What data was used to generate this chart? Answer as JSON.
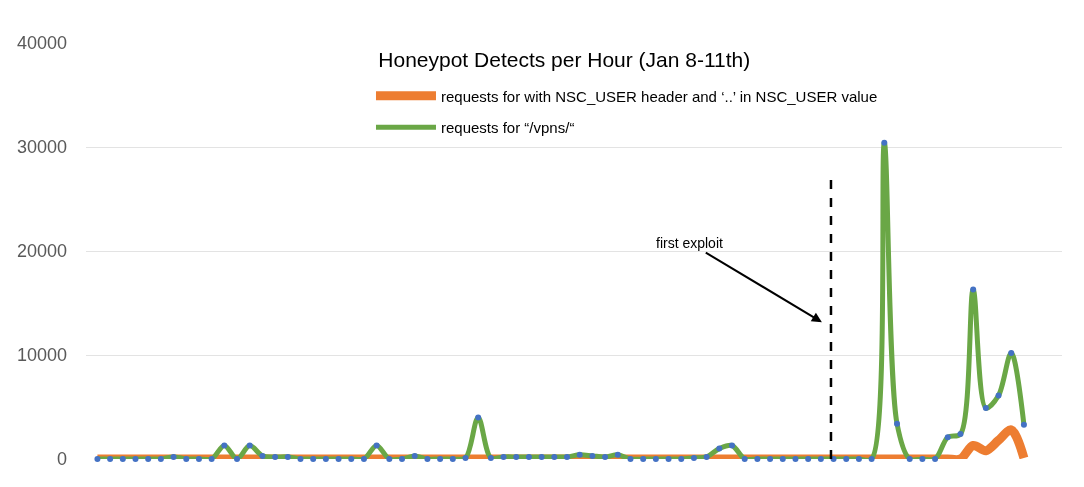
{
  "chart_data": {
    "type": "line",
    "title": "Honeypot Detects per Hour (Jan 8-11th)",
    "categories": [
      null,
      null,
      null,
      null,
      null,
      null,
      null,
      null,
      null,
      null,
      null,
      null,
      null,
      null,
      null,
      null,
      null,
      null,
      null,
      null,
      null,
      null,
      null,
      null,
      null,
      null,
      null,
      null,
      null,
      null,
      null,
      null,
      null,
      null,
      null,
      null,
      null,
      null,
      null,
      null,
      null,
      null,
      null,
      null,
      null,
      null,
      null,
      null,
      null,
      null,
      null,
      null,
      null,
      null,
      null,
      null,
      null,
      null,
      null,
      null,
      null,
      null,
      null,
      null,
      null,
      null,
      null,
      null,
      null,
      null,
      null,
      null,
      null,
      null
    ],
    "series": [
      {
        "name": "requests for with NSC_USER header and ‘..’ in NSC_USER value",
        "color": "#ed7d31",
        "values": [
          0,
          0,
          0,
          0,
          0,
          0,
          0,
          0,
          0,
          0,
          0,
          0,
          0,
          0,
          0,
          0,
          0,
          0,
          0,
          0,
          0,
          0,
          0,
          0,
          0,
          0,
          0,
          0,
          0,
          0,
          0,
          0,
          0,
          0,
          0,
          0,
          0,
          0,
          0,
          0,
          0,
          0,
          0,
          0,
          0,
          0,
          0,
          0,
          0,
          0,
          0,
          0,
          0,
          0,
          0,
          0,
          0,
          0,
          0,
          0,
          0,
          0,
          0,
          0,
          0,
          0,
          0,
          0,
          0,
          1300,
          800,
          1800,
          2800,
          100
        ]
      },
      {
        "name": "requests for “/vpns/“",
        "color": "#6aa746",
        "values": [
          0,
          0,
          0,
          0,
          0,
          0,
          200,
          0,
          0,
          0,
          1300,
          0,
          1300,
          300,
          200,
          200,
          0,
          0,
          0,
          0,
          0,
          0,
          1300,
          0,
          0,
          300,
          0,
          0,
          0,
          100,
          4000,
          100,
          200,
          200,
          200,
          200,
          200,
          200,
          400,
          300,
          200,
          400,
          0,
          0,
          0,
          0,
          0,
          100,
          200,
          1000,
          1300,
          0,
          0,
          0,
          0,
          0,
          0,
          0,
          0,
          0,
          0,
          0,
          30400,
          3400,
          0,
          0,
          0,
          2100,
          2400,
          16300,
          4900,
          6100,
          10200,
          3300
        ]
      },
      {
        "type": "scatter",
        "color": "#4472c4",
        "marker": "circle",
        "values": [
          0,
          0,
          0,
          0,
          0,
          0,
          200,
          0,
          0,
          0,
          1300,
          0,
          1300,
          300,
          200,
          200,
          0,
          0,
          0,
          0,
          0,
          0,
          1300,
          0,
          0,
          300,
          0,
          0,
          0,
          100,
          4000,
          100,
          200,
          200,
          200,
          200,
          200,
          200,
          400,
          300,
          200,
          400,
          0,
          0,
          0,
          0,
          0,
          100,
          200,
          1000,
          1300,
          0,
          0,
          0,
          0,
          0,
          0,
          0,
          0,
          0,
          0,
          0,
          30400,
          3400,
          0,
          0,
          0,
          2100,
          2400,
          16300,
          4900,
          6100,
          10200,
          3300
        ]
      }
    ],
    "ylim": [
      0,
      40000
    ],
    "yticks": [
      0,
      10000,
      20000,
      30000,
      40000
    ],
    "grid": "y",
    "legend": "top",
    "line_style": "solid",
    "annotations": [
      "first exploit"
    ]
  }
}
